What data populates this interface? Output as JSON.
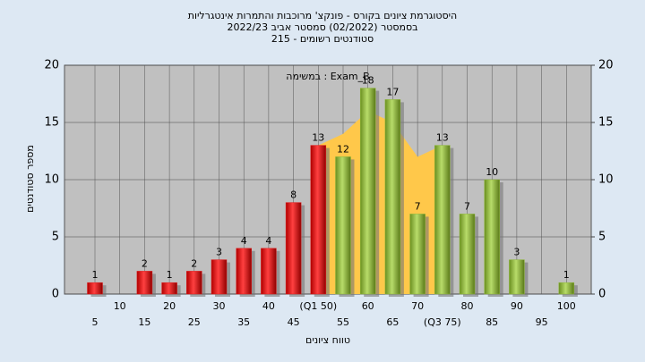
{
  "chart_data": {
    "type": "bar",
    "title": "היסטוגרמת ציונים בקורס - פונקצ' מרוכבות והתמרות אינטגרליות",
    "subtitle": [
      "בסמסטר  (02/2022)  סמסטר אביב 2022/23",
      "סטודנטים רשומים - 215"
    ],
    "annotation": "במשימה : Exam_B",
    "x_label": "טווח ציונים",
    "y_label": "מספר סטודנטים",
    "categories": [
      "5",
      "10",
      "15",
      "20",
      "25",
      "30",
      "35",
      "40",
      "45",
      "(Q1 50)",
      "55",
      "60",
      "65",
      "70",
      "(Q3 75)",
      "80",
      "85",
      "90",
      "95",
      "100"
    ],
    "values": [
      1,
      0,
      2,
      1,
      2,
      3,
      4,
      4,
      8,
      13,
      12,
      18,
      17,
      7,
      13,
      7,
      10,
      3,
      0,
      1
    ],
    "colors": [
      "#e02020",
      "#e02020",
      "#e02020",
      "#e02020",
      "#e02020",
      "#e02020",
      "#e02020",
      "#e02020",
      "#e02020",
      "#e02020",
      "#8fb83a",
      "#8fb83a",
      "#8fb83a",
      "#8fb83a",
      "#8fb83a",
      "#8fb83a",
      "#8fb83a",
      "#8fb83a",
      "#8fb83a",
      "#8fb83a"
    ],
    "area": {
      "color": "#ffc84a",
      "x_index": [
        9,
        10,
        11,
        12,
        13,
        14
      ],
      "values": [
        13,
        14,
        16,
        15,
        12,
        13
      ]
    },
    "ylim": [
      0,
      20
    ],
    "yticks": [
      0,
      5,
      10,
      15,
      20
    ],
    "y2lim": [
      0,
      20
    ],
    "y2ticks": [
      0,
      5,
      10,
      15,
      20
    ],
    "grid": true
  }
}
